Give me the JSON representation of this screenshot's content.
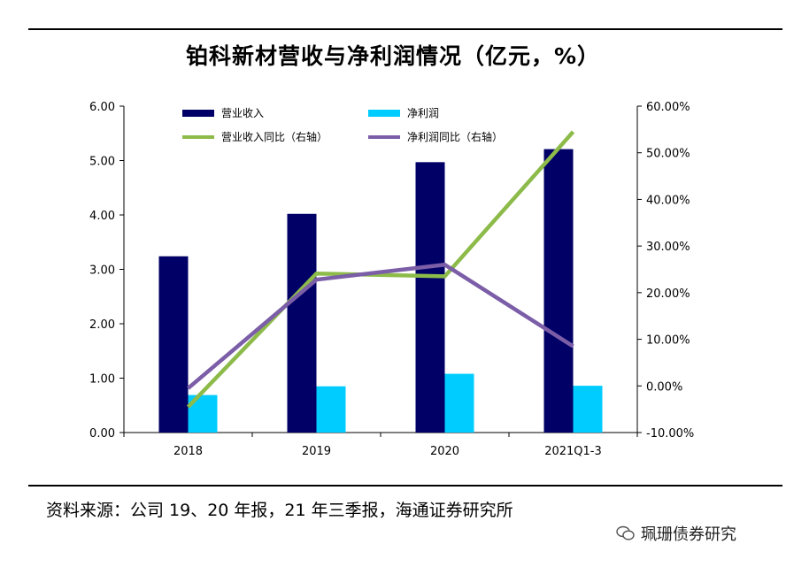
{
  "chart_data": {
    "type": "bar",
    "title": "铂科新材营收与净利润情况（亿元，%）",
    "categories": [
      "2018",
      "2019",
      "2020",
      "2021Q1-3"
    ],
    "series": [
      {
        "name": "营业收入",
        "kind": "bar",
        "axis": "left",
        "color": "#000066",
        "values": [
          3.24,
          4.02,
          4.97,
          5.21
        ]
      },
      {
        "name": "净利润",
        "kind": "bar",
        "axis": "left",
        "color": "#00CCFF",
        "values": [
          0.69,
          0.85,
          1.08,
          0.86
        ]
      },
      {
        "name": "营业收入同比（右轴）",
        "kind": "line",
        "axis": "right",
        "color": "#8DBB4A",
        "values": [
          -4.5,
          24.1,
          23.5,
          54.5
        ]
      },
      {
        "name": "净利润同比（右轴）",
        "kind": "line",
        "axis": "right",
        "color": "#7B5EA7",
        "values": [
          -0.5,
          22.8,
          26.0,
          8.5
        ]
      }
    ],
    "left_axis": {
      "ylim": [
        0,
        6
      ],
      "ticks": [
        "0.00",
        "1.00",
        "2.00",
        "3.00",
        "4.00",
        "5.00",
        "6.00"
      ]
    },
    "right_axis": {
      "ylim": [
        -10,
        60
      ],
      "ticks": [
        "-10.00%",
        "0.00%",
        "10.00%",
        "20.00%",
        "30.00%",
        "40.00%",
        "50.00%",
        "60.00%"
      ]
    },
    "legend": "top"
  },
  "footer": {
    "source": "资料来源：公司 19、20 年报，21 年三季报，海通证券研究所",
    "watermark": "珮珊债券研究"
  }
}
